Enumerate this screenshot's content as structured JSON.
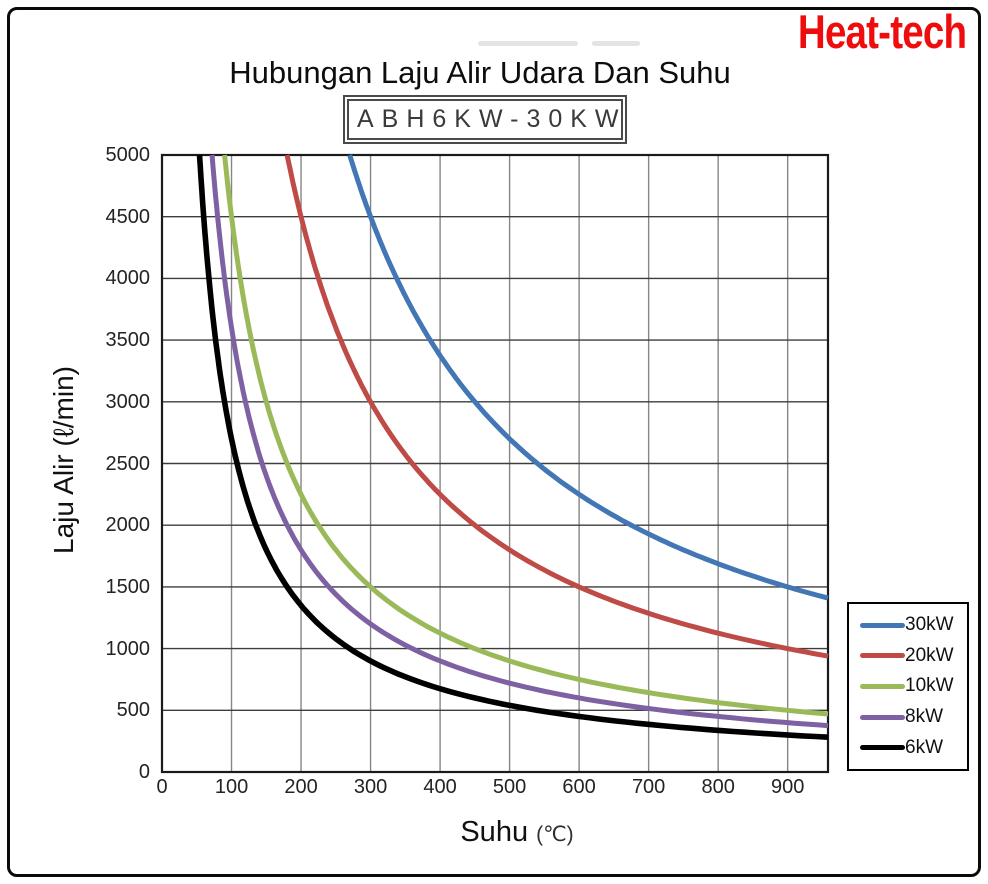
{
  "branding": {
    "logo_text": "Heat-tech",
    "logo_color": "#ee0c0c"
  },
  "chart_data": {
    "type": "line",
    "title": "Hubungan Laju Alir Udara Dan Suhu",
    "model_label": "ABH6KW-30KW",
    "xlabel": "Suhu (℃)",
    "xlabel_main": "Suhu",
    "xlabel_unit": "(℃)",
    "ylabel": "Laju Alir (ℓ/min)",
    "xlim": [
      0,
      958
    ],
    "ylim": [
      0,
      5000
    ],
    "x_ticks": [
      0,
      100,
      200,
      300,
      400,
      500,
      600,
      700,
      800,
      900
    ],
    "y_ticks": [
      0,
      500,
      1000,
      1500,
      2000,
      2500,
      3000,
      3500,
      4000,
      4500,
      5000
    ],
    "grid": true,
    "legend_position": "outside-right-bottom",
    "relationship": "flow[l/min] × temperature[°C] ≈ 45000 × power[kW], clipped at 5000 l/min",
    "q_t_constant_per_kw": 45000,
    "colors": {
      "grid_horizontal": "#3d3d3d",
      "grid_vertical": "#868686",
      "plot_border": "#1a1a1a"
    },
    "series": [
      {
        "name": "30kW",
        "kw": 30,
        "color": "#4276b4",
        "points": [
          [
            270,
            5000
          ],
          [
            300,
            4500
          ],
          [
            350,
            3857
          ],
          [
            400,
            3375
          ],
          [
            450,
            3000
          ],
          [
            500,
            2700
          ],
          [
            550,
            2455
          ],
          [
            600,
            2250
          ],
          [
            650,
            2077
          ],
          [
            700,
            1929
          ],
          [
            750,
            1800
          ],
          [
            800,
            1688
          ],
          [
            850,
            1588
          ],
          [
            900,
            1500
          ],
          [
            958,
            1409
          ]
        ]
      },
      {
        "name": "20kW",
        "kw": 20,
        "color": "#bf4b47",
        "points": [
          [
            180,
            5000
          ],
          [
            200,
            4500
          ],
          [
            250,
            3600
          ],
          [
            300,
            3000
          ],
          [
            350,
            2571
          ],
          [
            400,
            2250
          ],
          [
            450,
            2000
          ],
          [
            500,
            1800
          ],
          [
            550,
            1636
          ],
          [
            600,
            1500
          ],
          [
            650,
            1385
          ],
          [
            700,
            1286
          ],
          [
            750,
            1200
          ],
          [
            800,
            1125
          ],
          [
            850,
            1059
          ],
          [
            900,
            1000
          ],
          [
            958,
            939
          ]
        ]
      },
      {
        "name": "10kW",
        "kw": 10,
        "color": "#9aba59",
        "points": [
          [
            90,
            5000
          ],
          [
            100,
            4500
          ],
          [
            125,
            3600
          ],
          [
            150,
            3000
          ],
          [
            175,
            2571
          ],
          [
            200,
            2250
          ],
          [
            250,
            1800
          ],
          [
            300,
            1500
          ],
          [
            350,
            1286
          ],
          [
            400,
            1125
          ],
          [
            450,
            1000
          ],
          [
            500,
            900
          ],
          [
            550,
            818
          ],
          [
            600,
            750
          ],
          [
            650,
            692
          ],
          [
            700,
            643
          ],
          [
            750,
            600
          ],
          [
            800,
            563
          ],
          [
            850,
            529
          ],
          [
            900,
            500
          ],
          [
            958,
            470
          ]
        ]
      },
      {
        "name": "8kW",
        "kw": 8,
        "color": "#7d61a3",
        "points": [
          [
            72,
            5000
          ],
          [
            80,
            4500
          ],
          [
            100,
            3600
          ],
          [
            125,
            2880
          ],
          [
            150,
            2400
          ],
          [
            175,
            2057
          ],
          [
            200,
            1800
          ],
          [
            250,
            1440
          ],
          [
            300,
            1200
          ],
          [
            350,
            1029
          ],
          [
            400,
            900
          ],
          [
            450,
            800
          ],
          [
            500,
            720
          ],
          [
            550,
            655
          ],
          [
            600,
            600
          ],
          [
            650,
            554
          ],
          [
            700,
            514
          ],
          [
            750,
            480
          ],
          [
            800,
            450
          ],
          [
            850,
            424
          ],
          [
            900,
            400
          ],
          [
            958,
            376
          ]
        ]
      },
      {
        "name": "6kW",
        "kw": 6,
        "color": "#000000",
        "points": [
          [
            54,
            5000
          ],
          [
            60,
            4500
          ],
          [
            75,
            3600
          ],
          [
            100,
            2700
          ],
          [
            125,
            2160
          ],
          [
            150,
            1800
          ],
          [
            175,
            1543
          ],
          [
            200,
            1350
          ],
          [
            250,
            1080
          ],
          [
            300,
            900
          ],
          [
            350,
            771
          ],
          [
            400,
            675
          ],
          [
            450,
            600
          ],
          [
            500,
            540
          ],
          [
            550,
            491
          ],
          [
            600,
            450
          ],
          [
            650,
            415
          ],
          [
            700,
            386
          ],
          [
            750,
            360
          ],
          [
            800,
            338
          ],
          [
            850,
            318
          ],
          [
            900,
            300
          ],
          [
            958,
            282
          ]
        ]
      }
    ]
  }
}
